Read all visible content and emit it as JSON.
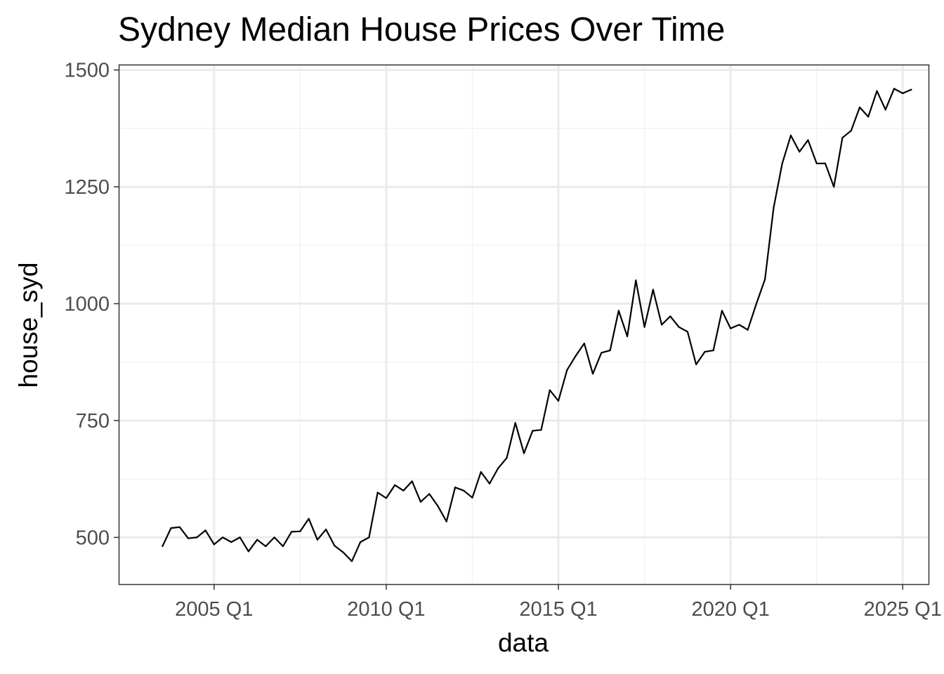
{
  "chart_data": {
    "type": "line",
    "title": "Sydney Median House Prices Over Time",
    "xlabel": "data",
    "ylabel": "house_syd",
    "x_ticks": [
      "2005 Q1",
      "2010 Q1",
      "2015 Q1",
      "2020 Q1",
      "2025 Q1"
    ],
    "y_ticks": [
      "500",
      "750",
      "1000",
      "1250",
      "1500"
    ],
    "xlim": [
      "2002 Q2",
      "2025 Q4"
    ],
    "ylim": [
      400,
      1510
    ],
    "grid": true,
    "colors": {
      "line": "#000000",
      "grid_major": "#ebebeb",
      "grid_minor": "#f3f3f3",
      "panel_border": "#333333"
    },
    "series": [
      {
        "x": [
          "2003 Q3",
          "2003 Q4",
          "2004 Q1",
          "2004 Q2",
          "2004 Q3",
          "2004 Q4",
          "2005 Q1",
          "2005 Q2",
          "2005 Q3",
          "2005 Q4",
          "2006 Q1",
          "2006 Q2",
          "2006 Q3",
          "2006 Q4",
          "2007 Q1",
          "2007 Q2",
          "2007 Q3",
          "2007 Q4",
          "2008 Q1",
          "2008 Q2",
          "2008 Q3",
          "2008 Q4",
          "2009 Q1",
          "2009 Q2",
          "2009 Q3",
          "2009 Q4",
          "2010 Q1",
          "2010 Q2",
          "2010 Q3",
          "2010 Q4",
          "2011 Q1",
          "2011 Q2",
          "2011 Q3",
          "2011 Q4",
          "2012 Q1",
          "2012 Q2",
          "2012 Q3",
          "2012 Q4",
          "2013 Q1",
          "2013 Q2",
          "2013 Q3",
          "2013 Q4",
          "2014 Q1",
          "2014 Q2",
          "2014 Q3",
          "2014 Q4",
          "2015 Q1",
          "2015 Q2",
          "2015 Q3",
          "2015 Q4",
          "2016 Q1",
          "2016 Q2",
          "2016 Q3",
          "2016 Q4",
          "2017 Q1",
          "2017 Q2",
          "2017 Q3",
          "2017 Q4",
          "2018 Q1",
          "2018 Q2",
          "2018 Q3",
          "2018 Q4",
          "2019 Q1",
          "2019 Q2",
          "2019 Q3",
          "2019 Q4",
          "2020 Q1",
          "2020 Q2",
          "2020 Q3",
          "2020 Q4",
          "2021 Q1",
          "2021 Q2",
          "2021 Q3",
          "2021 Q4",
          "2022 Q1",
          "2022 Q2",
          "2022 Q3",
          "2022 Q4",
          "2023 Q1",
          "2023 Q2",
          "2023 Q3",
          "2023 Q4",
          "2024 Q1",
          "2024 Q2",
          "2024 Q3",
          "2024 Q4",
          "2025 Q1",
          "2025 Q2"
        ],
        "values": [
          481,
          520,
          522,
          498,
          500,
          515,
          485,
          500,
          490,
          500,
          470,
          495,
          481,
          500,
          481,
          512,
          513,
          540,
          495,
          517,
          482,
          468,
          449,
          490,
          500,
          596,
          584,
          612,
          600,
          620,
          576,
          593,
          567,
          534,
          607,
          600,
          585,
          640,
          615,
          648,
          670,
          745,
          680,
          728,
          730,
          815,
          792,
          858,
          888,
          915,
          850,
          895,
          900,
          985,
          930,
          1050,
          950,
          1030,
          955,
          973,
          950,
          940,
          870,
          897,
          900,
          985,
          947,
          955,
          944,
          1000,
          1052,
          1205,
          1300,
          1360,
          1325,
          1350,
          1300,
          1300,
          1250,
          1355,
          1370,
          1420,
          1400,
          1455,
          1415,
          1460,
          1450,
          1458
        ]
      }
    ]
  }
}
